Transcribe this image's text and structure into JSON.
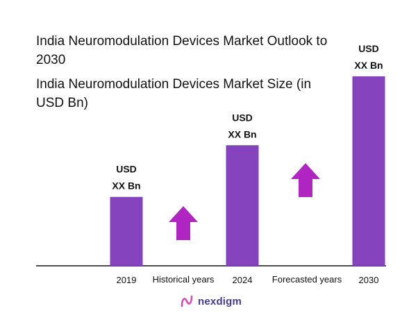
{
  "title": "India Neuromodulation Devices Market Outlook to 2030",
  "subtitle": "India Neuromodulation Devices Market Size (in USD Bn)",
  "brand": "nexdigm",
  "colors": {
    "bar": "#8442bd",
    "arrow": "#b125c2",
    "axis": "#111111",
    "brand": "#4a3b8f"
  },
  "chart_data": {
    "type": "bar",
    "categories": [
      "2019",
      "2024",
      "2030"
    ],
    "values": [
      1.0,
      1.75,
      2.75
    ],
    "value_labels": [
      [
        "USD",
        "XX Bn"
      ],
      [
        "USD",
        "XX Bn"
      ],
      [
        "USD",
        "XX Bn"
      ]
    ],
    "ylim": [
      0,
      2.8
    ],
    "annotations": [
      {
        "text": "Historical years",
        "between": [
          "2019",
          "2024"
        ],
        "icon": "up-arrow-icon"
      },
      {
        "text": "Forecasted years",
        "between": [
          "2024",
          "2030"
        ],
        "icon": "up-arrow-icon"
      }
    ],
    "grid": false,
    "title": "India Neuromodulation Devices Market Size (in USD Bn)",
    "xlabel": "",
    "ylabel": ""
  }
}
